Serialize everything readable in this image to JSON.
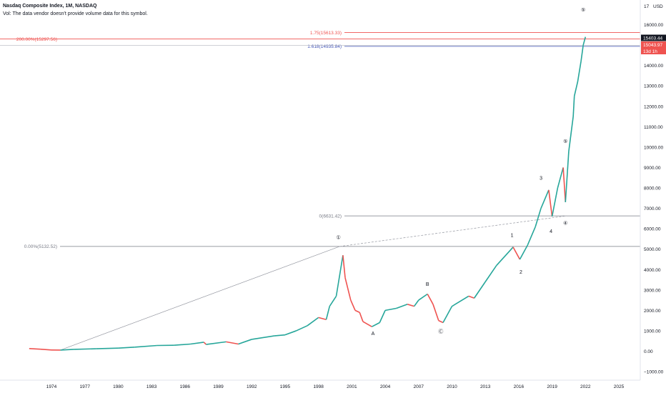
{
  "header": {
    "title": "Nasdaq Composite Index, 1M, NASDAQ",
    "vol_note": "Vol: The data vendor doesn't provide volume data for this symbol."
  },
  "price_axis": {
    "currency": "USD",
    "top_label": "17 000.00",
    "current_price": "15403.44",
    "second_price": "15043.97",
    "countdown": "13d 1h"
  },
  "chart_data": {
    "type": "line",
    "title": "Nasdaq Composite Index, 1M, NASDAQ",
    "xlabel": "",
    "ylabel": "",
    "ylim": [
      -1000,
      17000
    ],
    "xlim": [
      1972.5,
      2027.5
    ],
    "x_ticks": [
      "1974",
      "1977",
      "1980",
      "1983",
      "1986",
      "1989",
      "1992",
      "1995",
      "1998",
      "2001",
      "2004",
      "2007",
      "2010",
      "2013",
      "2016",
      "2019",
      "2022",
      "2025"
    ],
    "y_ticks": [
      "−1000.00",
      "0.00",
      "1000.00",
      "2000.00",
      "3000.00",
      "4000.00",
      "5000.00",
      "6000.00",
      "7000.00",
      "8000.00",
      "9000.00",
      "10000.00",
      "11000.00",
      "12000.00",
      "13000.00",
      "14000.00",
      "15000.00",
      "16000.00"
    ],
    "grid": false,
    "series": [
      {
        "name": "",
        "color": "#26a69a",
        "x": [
          1972.0,
          1973.0,
          1974.0,
          1974.8,
          1976.0,
          1978.0,
          1980.0,
          1981.5,
          1983.5,
          1985.0,
          1986.5,
          1987.7,
          1987.9,
          1989.7,
          1990.8,
          1992.0,
          1994.0,
          1995.0,
          1996.0,
          1997.0,
          1998.0,
          1998.7,
          1999.0,
          1999.6,
          2000.2,
          2000.4,
          2000.9,
          2001.3,
          2001.7,
          2002.0,
          2002.8,
          2003.5,
          2004.0,
          2005.0,
          2006.0,
          2006.6,
          2007.0,
          2007.8,
          2008.3,
          2008.8,
          2009.2,
          2010.0,
          2011.5,
          2012.0,
          2013.0,
          2014.0,
          2015.5,
          2016.1,
          2016.8,
          2017.5,
          2018.0,
          2018.7,
          2019.0,
          2019.5,
          2020.0,
          2020.2,
          2020.5,
          2020.9,
          2021.0,
          2021.3,
          2021.6,
          2021.8,
          2022.0
        ],
        "y": [
          130,
          100,
          60,
          55,
          90,
          120,
          150,
          200,
          280,
          290,
          350,
          440,
          330,
          460,
          350,
          580,
          750,
          800,
          1000,
          1250,
          1650,
          1550,
          2200,
          2700,
          4700,
          3600,
          2500,
          2000,
          1900,
          1450,
          1200,
          1400,
          2000,
          2100,
          2300,
          2200,
          2500,
          2800,
          2300,
          1500,
          1400,
          2200,
          2700,
          2600,
          3400,
          4200,
          5100,
          4500,
          5200,
          6100,
          7000,
          7900,
          6600,
          8000,
          9000,
          7300,
          9800,
          11500,
          12500,
          13200,
          14200,
          15000,
          15400
        ]
      }
    ],
    "levels": [
      {
        "label": "200.00%(15297.56)",
        "value": 15297.56,
        "color": "#ef5350"
      },
      {
        "label": "1.75(15613.33)",
        "value": 15613.33,
        "color": "#ef5350"
      },
      {
        "label": "1.618(14935.84)",
        "value": 14935.84,
        "color": "#3f51b5"
      },
      {
        "label": "0(6631.42)",
        "value": 6631.42,
        "color": "#787b86"
      },
      {
        "label": "0.00%(5132.52)",
        "value": 5132.52,
        "color": "#787b86"
      }
    ],
    "annotations": [
      {
        "text": "①",
        "x": 1999.8,
        "y": 5500
      },
      {
        "text": "A",
        "x": 2002.9,
        "y": 780
      },
      {
        "text": "B",
        "x": 2007.8,
        "y": 3200
      },
      {
        "text": "Ⓒ",
        "x": 2009.0,
        "y": 900
      },
      {
        "text": "1",
        "x": 2015.4,
        "y": 5600
      },
      {
        "text": "2",
        "x": 2016.2,
        "y": 3800
      },
      {
        "text": "3",
        "x": 2018.0,
        "y": 8400
      },
      {
        "text": "4",
        "x": 2018.9,
        "y": 5800
      },
      {
        "text": "④",
        "x": 2020.2,
        "y": 6200
      },
      {
        "text": "⑤",
        "x": 2020.2,
        "y": 10200
      },
      {
        "text": "⑤",
        "x": 2021.8,
        "y": 16650
      }
    ]
  }
}
